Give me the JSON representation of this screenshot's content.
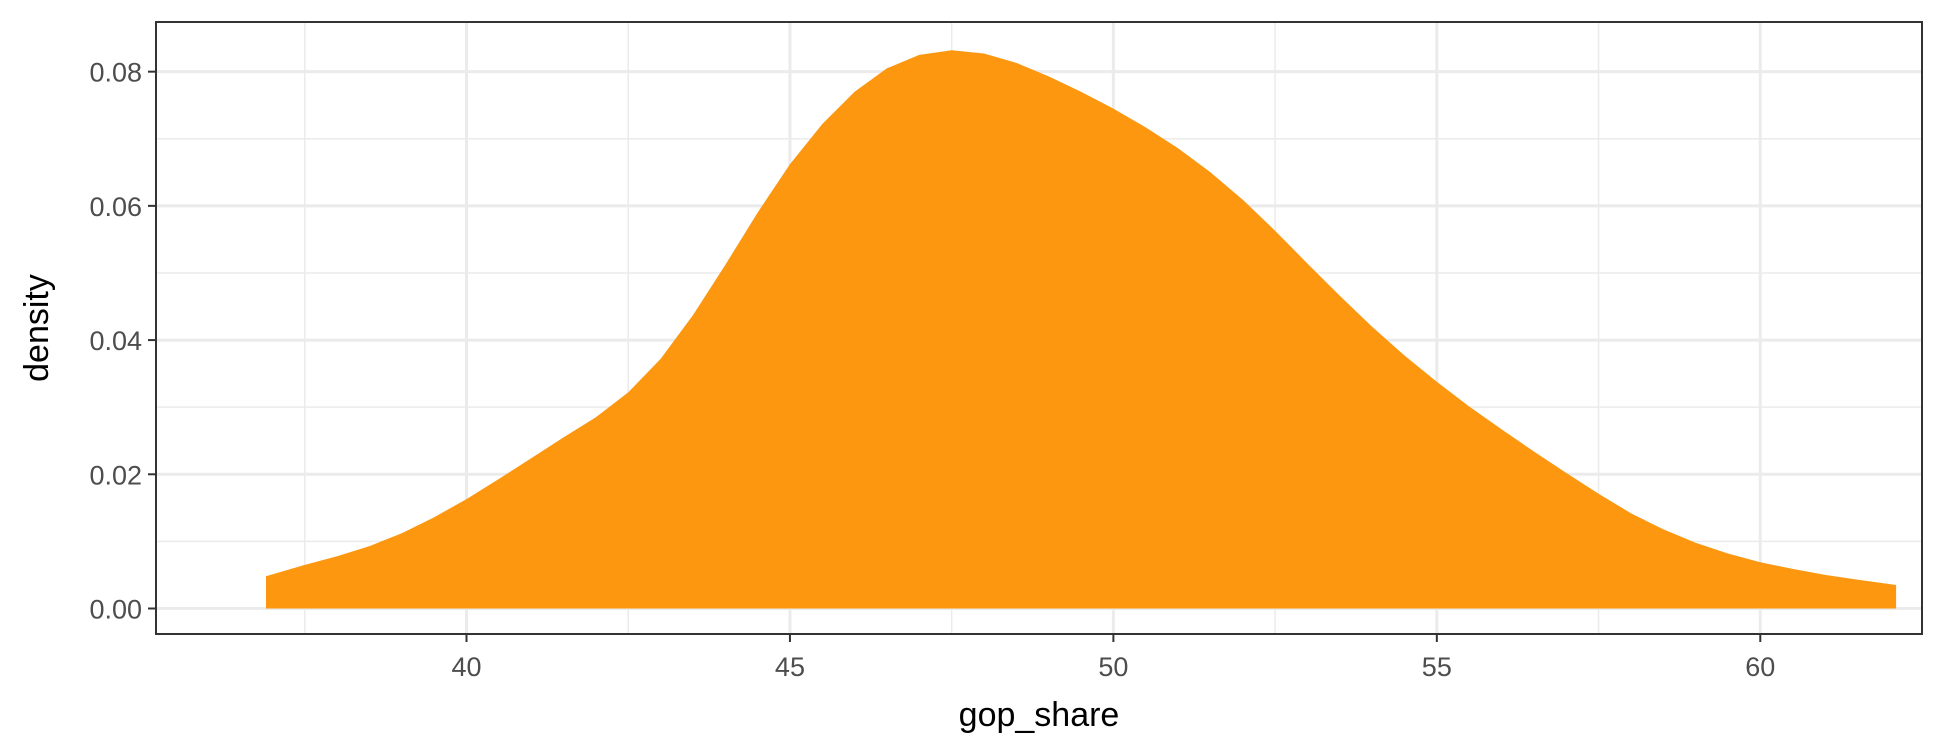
{
  "chart_data": {
    "type": "area",
    "xlabel": "gop_share",
    "ylabel": "density",
    "xlim": [
      35.2,
      62.5
    ],
    "ylim": [
      -0.0038,
      0.0874
    ],
    "x_ticks": [
      40,
      45,
      50,
      55,
      60
    ],
    "x_tick_labels": [
      "40",
      "45",
      "50",
      "55",
      "60"
    ],
    "x_minor_ticks": [
      37.5,
      42.5,
      47.5,
      52.5,
      57.5,
      62.5
    ],
    "y_ticks": [
      0.0,
      0.02,
      0.04,
      0.06,
      0.08
    ],
    "y_tick_labels": [
      "0.00",
      "0.02",
      "0.04",
      "0.06",
      "0.08"
    ],
    "y_minor_ticks": [
      0.01,
      0.03,
      0.05,
      0.07
    ],
    "grid": true,
    "fill_color": "#FC970F",
    "series": [
      {
        "x": [
          36.9,
          37.5,
          38.0,
          38.5,
          39.0,
          39.5,
          40.0,
          40.5,
          41.0,
          41.5,
          42.0,
          42.5,
          43.0,
          43.5,
          44.0,
          44.5,
          45.0,
          45.5,
          46.0,
          46.5,
          47.0,
          47.5,
          48.0,
          48.5,
          49.0,
          49.5,
          50.0,
          50.5,
          51.0,
          51.5,
          52.0,
          52.5,
          53.0,
          53.5,
          54.0,
          54.5,
          55.0,
          55.5,
          56.0,
          56.5,
          57.0,
          57.5,
          58.0,
          58.5,
          59.0,
          59.5,
          60.0,
          60.5,
          61.0,
          61.5,
          62.1
        ],
        "y": [
          0.0048,
          0.0065,
          0.0078,
          0.0093,
          0.0112,
          0.0136,
          0.0163,
          0.0193,
          0.0224,
          0.0255,
          0.0285,
          0.0322,
          0.0372,
          0.0437,
          0.0512,
          0.059,
          0.0662,
          0.0722,
          0.077,
          0.0805,
          0.0825,
          0.0832,
          0.0827,
          0.0813,
          0.0793,
          0.077,
          0.0745,
          0.0717,
          0.0686,
          0.065,
          0.0609,
          0.0563,
          0.0514,
          0.0466,
          0.042,
          0.0377,
          0.0338,
          0.0301,
          0.0267,
          0.0234,
          0.0202,
          0.0171,
          0.0142,
          0.0118,
          0.0098,
          0.0082,
          0.0069,
          0.0059,
          0.005,
          0.0043,
          0.0035
        ]
      }
    ]
  }
}
